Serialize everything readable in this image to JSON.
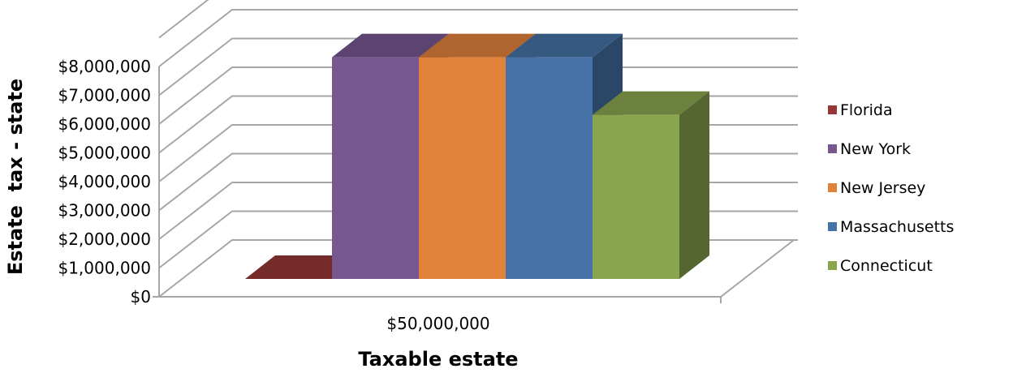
{
  "chart_data": {
    "type": "bar",
    "categories": [
      "$50,000,000"
    ],
    "series": [
      {
        "name": "Florida",
        "values": [
          0
        ],
        "color": "#953735"
      },
      {
        "name": "New York",
        "values": [
          7700000
        ],
        "color": "#77578F"
      },
      {
        "name": "New Jersey",
        "values": [
          7700000
        ],
        "color": "#E0823A"
      },
      {
        "name": "Massachusetts",
        "values": [
          7700000
        ],
        "color": "#4572A7"
      },
      {
        "name": "Connecticut",
        "values": [
          5700000
        ],
        "color": "#89A54E"
      }
    ],
    "xlabel": "Taxable estate",
    "ylabel": "Estate  tax - state",
    "ylim": [
      0,
      8000000
    ],
    "yticks": [
      "$0",
      "$1,000,000",
      "$2,000,000",
      "$3,000,000",
      "$4,000,000",
      "$5,000,000",
      "$6,000,000",
      "$7,000,000",
      "$8,000,000"
    ],
    "grid": true,
    "legend_position": "right",
    "style": "3d-clustered-column"
  }
}
